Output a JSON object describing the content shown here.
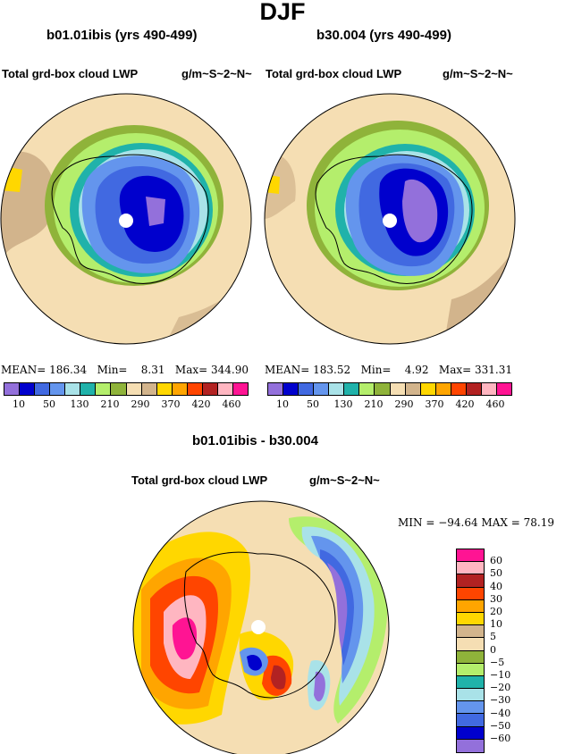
{
  "title": "DJF",
  "panels": [
    {
      "case_title": "b01.01ibis (yrs 490-499)",
      "variable": "Total grd-box cloud LWP",
      "units": "g/m~S~2~N~",
      "mean_label": "MEAN=",
      "mean": "186.34",
      "min_label": "Min=",
      "min": "8.31",
      "max_label": "Max=",
      "max": "344.90"
    },
    {
      "case_title": "b30.004 (yrs 490-499)",
      "variable": "Total grd-box cloud LWP",
      "units": "g/m~S~2~N~",
      "mean_label": "MEAN=",
      "mean": "183.52",
      "min_label": "Min=",
      "min": "4.92",
      "max_label": "Max=",
      "max": "331.31"
    }
  ],
  "diff": {
    "title": "b01.01ibis - b30.004",
    "variable": "Total grd-box cloud LWP",
    "units": "g/m~S~2~N~",
    "minmax": "MIN = −94.64 MAX =  78.19"
  },
  "colorbar_abs": {
    "colors": [
      "#9370db",
      "#0000cd",
      "#4169e1",
      "#6495ed",
      "#a9e2e8",
      "#20b2aa",
      "#b4ee6c",
      "#8fb33a",
      "#f5deb3",
      "#d2b48c",
      "#ffd700",
      "#ffa500",
      "#ff4500",
      "#b22222",
      "#ffb6c1",
      "#ff1493"
    ],
    "tick_labels": [
      "10",
      "50",
      "130",
      "210",
      "290",
      "370",
      "420",
      "460"
    ]
  },
  "colorbar_diff": {
    "colors": [
      "#ff1493",
      "#ffb6c1",
      "#b22222",
      "#ff4500",
      "#ffa500",
      "#ffd700",
      "#d2b48c",
      "#f5deb3",
      "#8fb33a",
      "#b4ee6c",
      "#20b2aa",
      "#a9e2e8",
      "#6495ed",
      "#4169e1",
      "#0000cd",
      "#9370db"
    ],
    "tick_labels": [
      "60",
      "50",
      "40",
      "30",
      "20",
      "10",
      "5",
      "0",
      "−5",
      "−10",
      "−20",
      "−30",
      "−40",
      "−50",
      "−60"
    ]
  }
}
